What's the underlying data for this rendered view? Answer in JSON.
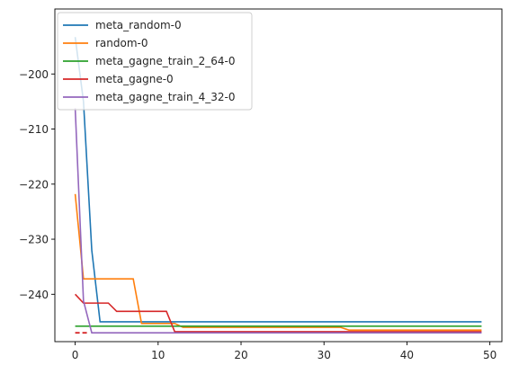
{
  "chart_data": {
    "type": "line",
    "xlim": [
      -2.45,
      51.45
    ],
    "ylim": [
      -248.6,
      -188.2
    ],
    "xticks": [
      0,
      10,
      20,
      30,
      40,
      50
    ],
    "yticks": [
      -240,
      -230,
      -220,
      -210,
      -200
    ],
    "xtick_labels": [
      "0",
      "10",
      "20",
      "30",
      "40",
      "50"
    ],
    "ytick_labels": [
      "−240",
      "−230",
      "−220",
      "−210",
      "−200"
    ],
    "grid": false,
    "legend_position": "upper-left",
    "series": [
      {
        "name": "meta_random-0",
        "color": "#1f77b4",
        "x": [
          0,
          1,
          2,
          3,
          4,
          5,
          49
        ],
        "y": [
          -193.3,
          -205.0,
          -232.0,
          -245.0,
          -245.0,
          -245.0,
          -245.0
        ]
      },
      {
        "name": "random-0",
        "color": "#ff7f0e",
        "x": [
          0,
          1,
          2,
          6,
          7,
          8,
          9,
          12,
          13,
          25,
          32,
          33,
          49
        ],
        "y": [
          -221.8,
          -237.2,
          -237.2,
          -237.2,
          -237.2,
          -245.3,
          -245.3,
          -245.3,
          -246.0,
          -246.0,
          -246.0,
          -246.5,
          -246.5
        ]
      },
      {
        "name": "meta_gagne_train_2_64-0",
        "color": "#2ca02c",
        "x": [
          0,
          25,
          49
        ],
        "y": [
          -245.8,
          -245.8,
          -245.8
        ]
      },
      {
        "name": "meta_gagne-0",
        "color": "#d62728",
        "x": [
          0,
          1,
          4,
          5,
          11,
          12,
          25,
          33,
          49
        ],
        "y": [
          -240.0,
          -241.6,
          -241.6,
          -243.1,
          -243.1,
          -246.8,
          -246.8,
          -246.8,
          -246.8
        ]
      },
      {
        "name": "meta_gagne_train_4_32-0",
        "color": "#9467bd",
        "x": [
          0,
          1,
          2,
          3,
          25,
          49
        ],
        "y": [
          -206.2,
          -241.2,
          -247.0,
          -247.0,
          -247.0,
          -247.0
        ]
      }
    ],
    "extra_segments": [
      {
        "color": "#d62728",
        "dashed": true,
        "x": [
          0,
          1.5
        ],
        "y": [
          -247.0,
          -247.0
        ]
      }
    ]
  }
}
